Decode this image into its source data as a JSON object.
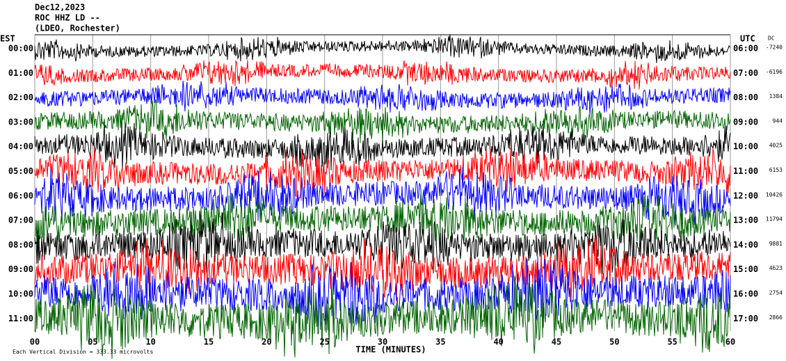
{
  "chart_data": {
    "type": "helicorder",
    "title_lines": [
      "Dec12,2023",
      "ROC HHZ LD --",
      "(LDEO, Rochester)"
    ],
    "left_axis_title": "EST",
    "right_axis_title": "UTC",
    "dc_title": "DC",
    "rows": [
      {
        "est": "00:00",
        "utc": "06:00",
        "dc": -7240
      },
      {
        "est": "01:00",
        "utc": "07:00",
        "dc": -6196
      },
      {
        "est": "02:00",
        "utc": "08:00",
        "dc": 1384
      },
      {
        "est": "03:00",
        "utc": "09:00",
        "dc": 944
      },
      {
        "est": "04:00",
        "utc": "10:00",
        "dc": 4025
      },
      {
        "est": "05:00",
        "utc": "11:00",
        "dc": 6153
      },
      {
        "est": "06:00",
        "utc": "12:00",
        "dc": 10426
      },
      {
        "est": "07:00",
        "utc": "13:00",
        "dc": 11794
      },
      {
        "est": "08:00",
        "utc": "14:00",
        "dc": 9881
      },
      {
        "est": "09:00",
        "utc": "15:00",
        "dc": 4623
      },
      {
        "est": "10:00",
        "utc": "16:00",
        "dc": 2754
      },
      {
        "est": "11:00",
        "utc": "17:00",
        "dc": 2866
      }
    ],
    "trace_colors": [
      "#000000",
      "#ff0000",
      "#0000ff",
      "#006400"
    ],
    "xlim": [
      0,
      60
    ],
    "xticks": [
      {
        "value": 0,
        "label": "00"
      },
      {
        "value": 5,
        "label": "05"
      },
      10,
      15,
      20,
      25,
      30,
      35,
      40,
      45,
      50,
      55,
      60
    ],
    "x_label": "TIME (MINUTES)",
    "footer": "Each Vertical Division = 333.33 microvolts",
    "grid": true
  }
}
